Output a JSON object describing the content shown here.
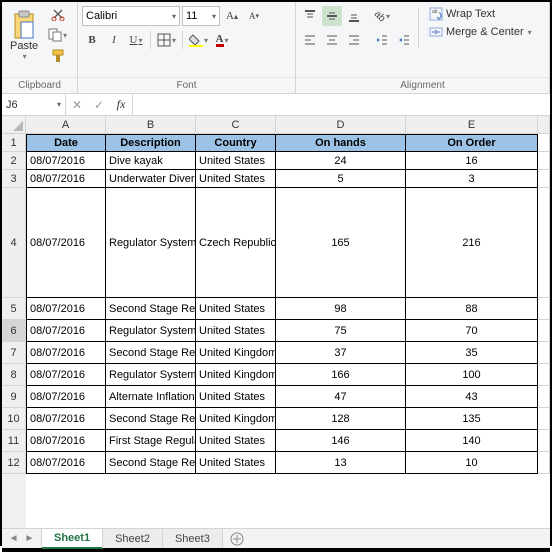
{
  "ribbon": {
    "clipboard": {
      "paste_label": "Paste",
      "group_label": "Clipboard"
    },
    "font": {
      "font_name": "Calibri",
      "font_size": "11",
      "group_label": "Font",
      "bold": "B",
      "italic": "I",
      "underline": "U"
    },
    "alignment": {
      "wrap_text_label": "Wrap Text",
      "merge_label": "Merge & Center",
      "group_label": "Alignment"
    }
  },
  "formula_bar": {
    "name_box": "J6",
    "cancel": "✕",
    "enter": "✓",
    "fx": "fx",
    "value": ""
  },
  "columns": {
    "widths": [
      80,
      90,
      80,
      130,
      132
    ],
    "letters": [
      "A",
      "B",
      "C",
      "D",
      "E"
    ],
    "headers": [
      "Date",
      "Description",
      "Country",
      "On hands",
      "On Order"
    ]
  },
  "rows": {
    "numbers": [
      "1",
      "2",
      "3",
      "4",
      "5",
      "6",
      "7",
      "8",
      "9",
      "10",
      "11",
      "12"
    ],
    "heights": [
      18,
      18,
      18,
      110,
      22,
      22,
      22,
      22,
      22,
      22,
      22,
      22
    ],
    "selected_index": 5,
    "data": [
      [
        "08/07/2016",
        "Dive kayak",
        "United States",
        "24",
        "16"
      ],
      [
        "08/07/2016",
        "Underwater Diver Vehicle",
        "United States",
        "5",
        "3"
      ],
      [
        "08/07/2016",
        "Regulator System",
        "Czech Republic",
        "165",
        "216"
      ],
      [
        "08/07/2016",
        "Second Stage Regulator",
        "United States",
        "98",
        "88"
      ],
      [
        "08/07/2016",
        "Regulator System",
        "United States",
        "75",
        "70"
      ],
      [
        "08/07/2016",
        "Second Stage Regulator",
        "United Kingdom",
        "37",
        "35"
      ],
      [
        "08/07/2016",
        "Regulator System",
        "United Kingdom",
        "166",
        "100"
      ],
      [
        "08/07/2016",
        "Alternate Inflation Regulator",
        "United States",
        "47",
        "43"
      ],
      [
        "08/07/2016",
        "Second Stage Regulator",
        "United Kingdom",
        "128",
        "135"
      ],
      [
        "08/07/2016",
        "First Stage Regulator",
        "United States",
        "146",
        "140"
      ],
      [
        "08/07/2016",
        "Second Stage Regulator",
        "United States",
        "13",
        "10"
      ]
    ]
  },
  "tabs": {
    "sheets": [
      "Sheet1",
      "Sheet2",
      "Sheet3"
    ],
    "active_index": 0
  },
  "colors": {
    "header_bg": "#9cc3e6",
    "accent": "#227447"
  }
}
